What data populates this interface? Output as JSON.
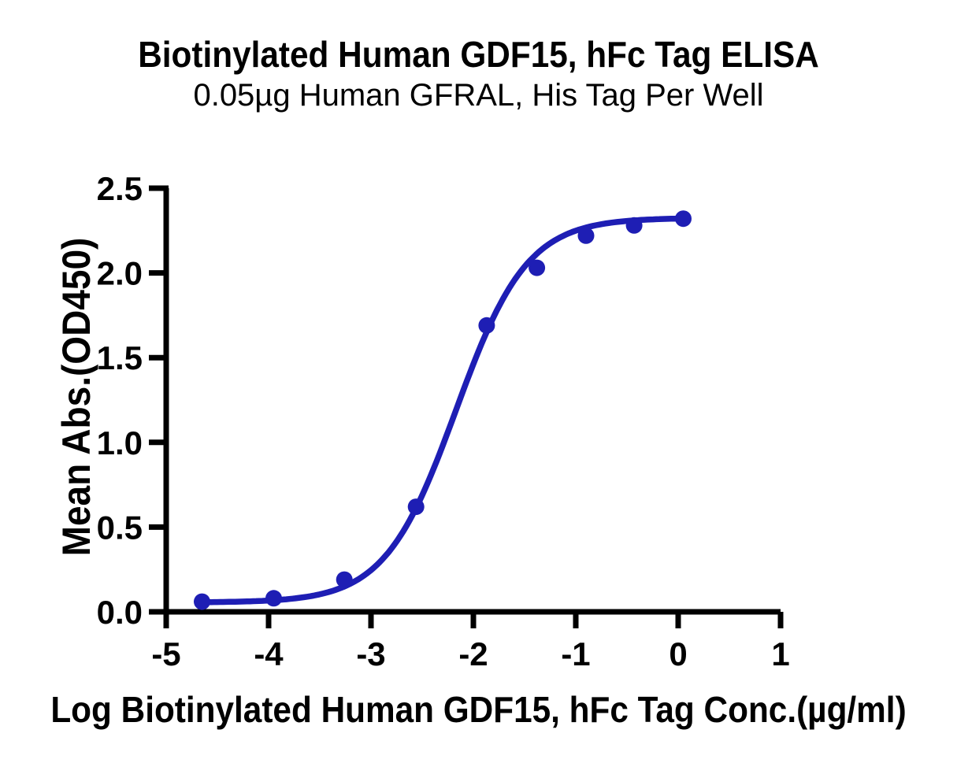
{
  "chart_data": {
    "type": "scatter",
    "title": "Biotinylated Human GDF15, hFc Tag ELISA",
    "subtitle": "0.05µg Human GFRAL, His Tag Per Well",
    "xlabel": "Log Biotinylated Human GDF15, hFc Tag Conc.(µg/ml)",
    "ylabel": "Mean Abs.(OD450)",
    "xlim": [
      -5,
      1
    ],
    "ylim": [
      0,
      2.5
    ],
    "x_ticks": [
      -5,
      -4,
      -3,
      -2,
      -1,
      0,
      1
    ],
    "x_tick_labels": [
      "-5",
      "-4",
      "-3",
      "-2",
      "-1",
      "0",
      "1"
    ],
    "y_ticks": [
      0,
      0.5,
      1,
      1.5,
      2,
      2.5
    ],
    "y_tick_labels": [
      "0.0",
      "0.5",
      "1.0",
      "1.5",
      "2.0",
      "2.5"
    ],
    "grid": false,
    "legend_position": "none",
    "series": [
      {
        "name": "Biotinylated Human GDF15, hFc Tag",
        "marker": "circle",
        "x": [
          -4.65,
          -3.95,
          -3.26,
          -2.56,
          -1.87,
          -1.38,
          -0.9,
          -0.43,
          0.05
        ],
        "y": [
          0.06,
          0.08,
          0.19,
          0.62,
          1.69,
          2.03,
          2.22,
          2.28,
          2.32
        ],
        "fit": {
          "model": "4PL",
          "bottom": 0.055,
          "top": 2.325,
          "log_ec50": -2.17,
          "hill_slope": 1.25
        }
      }
    ]
  },
  "colors": {
    "curve": "#1e1eb4",
    "axis": "#000000",
    "text": "#000000",
    "background": "#ffffff"
  }
}
